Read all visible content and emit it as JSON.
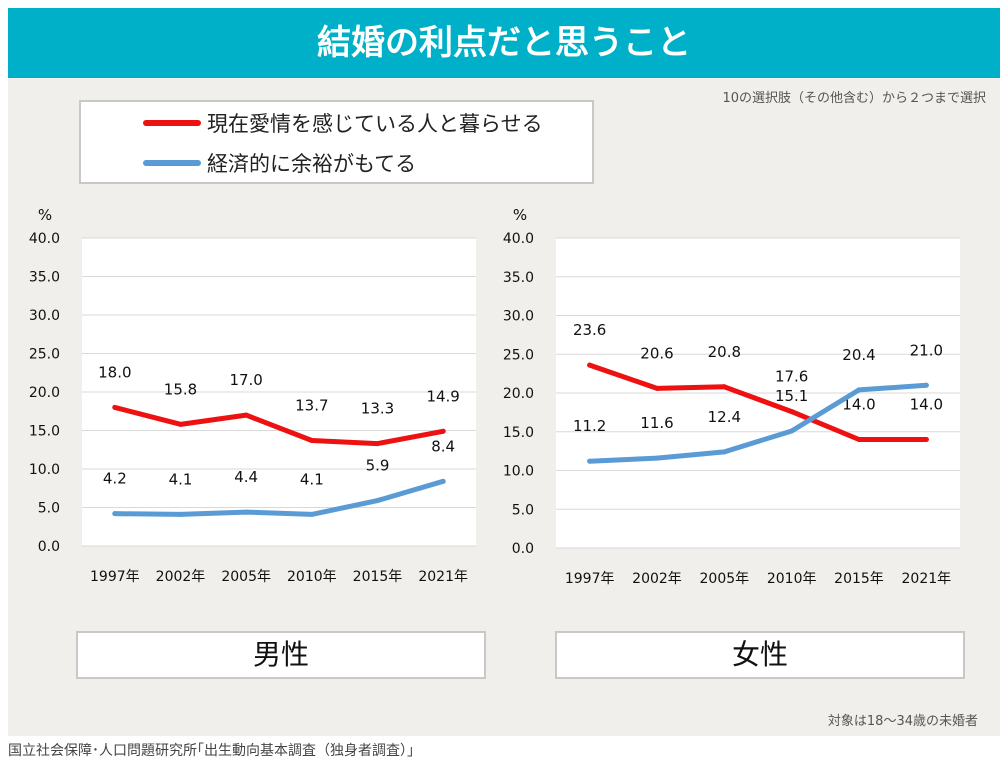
{
  "header": {
    "title": "結婚の利点だと思うこと"
  },
  "notes": {
    "selection": "10の選択肢（その他含む）から２つまで選択",
    "target": "対象は18〜34歳の未婚者",
    "source": "国立社会保障･人口問題研究所｢出生動向基本調査（独身者調査）」"
  },
  "legend": [
    {
      "label": "現在愛情を感じている人と暮らせる",
      "color": "#ee1111"
    },
    {
      "label": "経済的に余裕がもてる",
      "color": "#5b9bd5"
    }
  ],
  "chart_data": [
    {
      "type": "line",
      "panel_label": "男性",
      "ylabel": "%",
      "ylim": [
        0,
        40
      ],
      "yticks": [
        "0.0",
        "5.0",
        "10.0",
        "15.0",
        "20.0",
        "25.0",
        "30.0",
        "35.0",
        "40.0"
      ],
      "categories": [
        "1997年",
        "2002年",
        "2005年",
        "2010年",
        "2015年",
        "2021年"
      ],
      "series": [
        {
          "name": "現在愛情を感じている人と暮らせる",
          "color": "#ee1111",
          "values": [
            18.0,
            15.8,
            17.0,
            13.7,
            13.3,
            14.9
          ],
          "labels": [
            "18.0",
            "15.8",
            "17.0",
            "13.7",
            "13.3",
            "14.9"
          ]
        },
        {
          "name": "経済的に余裕がもてる",
          "color": "#5b9bd5",
          "values": [
            4.2,
            4.1,
            4.4,
            4.1,
            5.9,
            8.4
          ],
          "labels": [
            "4.2",
            "4.1",
            "4.4",
            "4.1",
            "5.9",
            "8.4"
          ]
        }
      ]
    },
    {
      "type": "line",
      "panel_label": "女性",
      "ylabel": "%",
      "ylim": [
        0,
        40
      ],
      "yticks": [
        "0.0",
        "5.0",
        "10.0",
        "15.0",
        "20.0",
        "25.0",
        "30.0",
        "35.0",
        "40.0"
      ],
      "categories": [
        "1997年",
        "2002年",
        "2005年",
        "2010年",
        "2015年",
        "2021年"
      ],
      "series": [
        {
          "name": "現在愛情を感じている人と暮らせる",
          "color": "#ee1111",
          "values": [
            23.6,
            20.6,
            20.8,
            17.6,
            14.0,
            14.0
          ],
          "labels": [
            "23.6",
            "20.6",
            "20.8",
            "17.6",
            "14.0",
            "14.0"
          ]
        },
        {
          "name": "経済的に余裕がもてる",
          "color": "#5b9bd5",
          "values": [
            11.2,
            11.6,
            12.4,
            15.1,
            20.4,
            21.0
          ],
          "labels": [
            "11.2",
            "11.6",
            "12.4",
            "15.1",
            "20.4",
            "21.0"
          ]
        }
      ]
    }
  ]
}
